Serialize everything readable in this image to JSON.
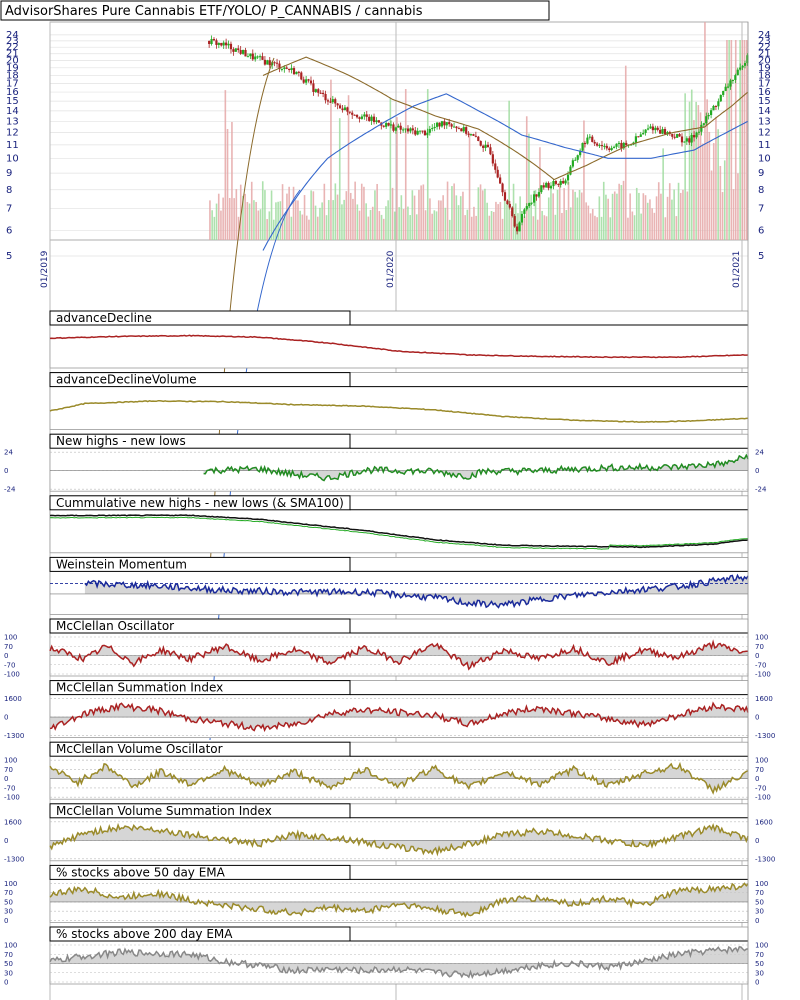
{
  "chart_data": {
    "type": "line",
    "title": "AdvisorShares Pure Cannabis ETF/YOLO/ P_CANNABIS / cannabis",
    "colors": {
      "up": "#22aa22",
      "down": "#aa2222",
      "sma_long": "#3366cc",
      "sma_mid": "#8b6a2b",
      "red_line": "#aa2222",
      "olive_line": "#9a8a2a",
      "green_line": "#228b22",
      "black_line": "#111111",
      "blue_line": "#1a2a9a",
      "gray_line": "#888888",
      "fill": "#c8c8c8"
    },
    "price_panel": {
      "y_ticks": [
        5,
        6,
        7,
        8,
        9,
        10,
        11,
        12,
        13,
        14,
        15,
        16,
        17,
        18,
        19,
        20,
        21,
        22,
        23,
        24
      ],
      "y_labels_left": [
        "24",
        "23",
        "22",
        "21",
        "20",
        "19",
        "18",
        "17",
        "16",
        "15",
        "14",
        "13",
        "12",
        "11",
        "10",
        "9",
        "8",
        "7",
        "6",
        "5"
      ],
      "y_labels_right": [
        "24",
        "23",
        "22",
        "21",
        "20",
        "19",
        "18",
        "17",
        "16",
        "15",
        "14",
        "13",
        "12",
        "11",
        "10",
        "9",
        "8",
        "7",
        "6",
        "5"
      ],
      "scale": "log",
      "x_dates": [
        "01/2019",
        "01/2020",
        "01/2021"
      ],
      "price_points": [
        [
          0.0,
          23.0
        ],
        [
          0.04,
          22.0
        ],
        [
          0.08,
          20.5
        ],
        [
          0.12,
          19.5
        ],
        [
          0.16,
          18.5
        ],
        [
          0.2,
          16.0
        ],
        [
          0.24,
          14.5
        ],
        [
          0.28,
          13.5
        ],
        [
          0.32,
          12.8
        ],
        [
          0.36,
          12.2
        ],
        [
          0.4,
          12.0
        ],
        [
          0.44,
          13.0
        ],
        [
          0.48,
          12.0
        ],
        [
          0.52,
          10.5
        ],
        [
          0.55,
          7.5
        ],
        [
          0.57,
          6.0
        ],
        [
          0.59,
          7.2
        ],
        [
          0.62,
          8.2
        ],
        [
          0.66,
          8.5
        ],
        [
          0.7,
          11.5
        ],
        [
          0.74,
          10.8
        ],
        [
          0.78,
          11.0
        ],
        [
          0.82,
          12.5
        ],
        [
          0.86,
          11.8
        ],
        [
          0.89,
          11.2
        ],
        [
          0.92,
          13.0
        ],
        [
          0.95,
          15.5
        ],
        [
          0.97,
          17.5
        ],
        [
          0.99,
          19.0
        ],
        [
          1.0,
          21.5
        ]
      ],
      "sma_mid_points": [
        [
          0.1,
          18.0
        ],
        [
          0.18,
          20.5
        ],
        [
          0.26,
          18.0
        ],
        [
          0.34,
          15.2
        ],
        [
          0.42,
          13.5
        ],
        [
          0.5,
          12.3
        ],
        [
          0.58,
          10.2
        ],
        [
          0.64,
          8.6
        ],
        [
          0.7,
          9.5
        ],
        [
          0.78,
          11.0
        ],
        [
          0.86,
          12.0
        ],
        [
          0.92,
          12.5
        ],
        [
          0.97,
          14.5
        ],
        [
          1.0,
          16.0
        ]
      ],
      "sma_long_points": [
        [
          0.1,
          5.2
        ],
        [
          0.16,
          7.5
        ],
        [
          0.22,
          10.0
        ],
        [
          0.3,
          12.2
        ],
        [
          0.38,
          14.5
        ],
        [
          0.44,
          15.8
        ],
        [
          0.5,
          14.0
        ],
        [
          0.58,
          11.8
        ],
        [
          0.66,
          10.8
        ],
        [
          0.74,
          10.0
        ],
        [
          0.82,
          10.0
        ],
        [
          0.9,
          10.6
        ],
        [
          0.96,
          12.0
        ],
        [
          1.0,
          13.0
        ]
      ]
    },
    "panels": [
      {
        "title": "advanceDecline",
        "style": "line",
        "color_key": "red_line",
        "points": [
          [
            0,
            0.75
          ],
          [
            0.1,
            0.8
          ],
          [
            0.2,
            0.82
          ],
          [
            0.3,
            0.78
          ],
          [
            0.4,
            0.62
          ],
          [
            0.5,
            0.4
          ],
          [
            0.6,
            0.3
          ],
          [
            0.7,
            0.26
          ],
          [
            0.8,
            0.24
          ],
          [
            0.9,
            0.24
          ],
          [
            1,
            0.3
          ]
        ],
        "y_labels": []
      },
      {
        "title": "advanceDeclineVolume",
        "style": "line",
        "color_key": "olive_line",
        "points": [
          [
            0,
            0.45
          ],
          [
            0.05,
            0.65
          ],
          [
            0.15,
            0.72
          ],
          [
            0.25,
            0.7
          ],
          [
            0.35,
            0.62
          ],
          [
            0.45,
            0.58
          ],
          [
            0.55,
            0.48
          ],
          [
            0.65,
            0.3
          ],
          [
            0.75,
            0.2
          ],
          [
            0.85,
            0.15
          ],
          [
            0.92,
            0.18
          ],
          [
            1,
            0.25
          ]
        ],
        "y_labels": []
      },
      {
        "title": "New highs - new lows",
        "style": "osc",
        "color_key": "green_line",
        "points": [
          [
            0.22,
            0.5
          ],
          [
            0.3,
            0.55
          ],
          [
            0.35,
            0.4
          ],
          [
            0.4,
            0.3
          ],
          [
            0.45,
            0.52
          ],
          [
            0.55,
            0.48
          ],
          [
            0.6,
            0.35
          ],
          [
            0.62,
            0.48
          ],
          [
            0.7,
            0.5
          ],
          [
            0.8,
            0.58
          ],
          [
            0.9,
            0.6
          ],
          [
            0.97,
            0.7
          ],
          [
            1,
            0.9
          ]
        ],
        "y_labels": [
          "24",
          "0",
          "-24"
        ]
      },
      {
        "title": "Cummulative new highs - new lows (& SMA100)",
        "style": "line",
        "color_key": "black_line",
        "points": [
          [
            0,
            0.95
          ],
          [
            0.2,
            0.96
          ],
          [
            0.3,
            0.85
          ],
          [
            0.45,
            0.55
          ],
          [
            0.55,
            0.3
          ],
          [
            0.65,
            0.15
          ],
          [
            0.75,
            0.12
          ],
          [
            0.85,
            0.1
          ],
          [
            0.95,
            0.18
          ],
          [
            1,
            0.3
          ]
        ],
        "y_labels": []
      },
      {
        "title": "Weinstein Momentum",
        "style": "osc",
        "color_key": "blue_line",
        "points": [
          [
            0.05,
            0.78
          ],
          [
            0.15,
            0.72
          ],
          [
            0.25,
            0.6
          ],
          [
            0.35,
            0.55
          ],
          [
            0.45,
            0.55
          ],
          [
            0.55,
            0.4
          ],
          [
            0.6,
            0.25
          ],
          [
            0.65,
            0.2
          ],
          [
            0.72,
            0.4
          ],
          [
            0.8,
            0.55
          ],
          [
            0.9,
            0.7
          ],
          [
            0.97,
            0.9
          ],
          [
            1,
            0.95
          ]
        ],
        "y_labels": []
      },
      {
        "title": "McClellan Oscillator",
        "style": "osc",
        "color_key": "red_line",
        "points": [
          [
            0,
            0.7
          ],
          [
            0.05,
            0.4
          ],
          [
            0.08,
            0.75
          ],
          [
            0.12,
            0.3
          ],
          [
            0.16,
            0.65
          ],
          [
            0.2,
            0.4
          ],
          [
            0.25,
            0.75
          ],
          [
            0.3,
            0.35
          ],
          [
            0.35,
            0.65
          ],
          [
            0.4,
            0.3
          ],
          [
            0.45,
            0.7
          ],
          [
            0.5,
            0.35
          ],
          [
            0.55,
            0.8
          ],
          [
            0.6,
            0.2
          ],
          [
            0.65,
            0.65
          ],
          [
            0.7,
            0.4
          ],
          [
            0.75,
            0.7
          ],
          [
            0.8,
            0.3
          ],
          [
            0.85,
            0.65
          ],
          [
            0.9,
            0.45
          ],
          [
            0.95,
            0.8
          ],
          [
            1,
            0.55
          ]
        ],
        "y_labels": [
          "100",
          "70",
          "0",
          "-70",
          "-100"
        ]
      },
      {
        "title": "McClellan Summation Index",
        "style": "osc",
        "color_key": "red_line",
        "points": [
          [
            0,
            0.2
          ],
          [
            0.05,
            0.6
          ],
          [
            0.1,
            0.8
          ],
          [
            0.15,
            0.7
          ],
          [
            0.2,
            0.45
          ],
          [
            0.3,
            0.2
          ],
          [
            0.35,
            0.3
          ],
          [
            0.4,
            0.6
          ],
          [
            0.45,
            0.7
          ],
          [
            0.55,
            0.55
          ],
          [
            0.6,
            0.3
          ],
          [
            0.65,
            0.6
          ],
          [
            0.7,
            0.75
          ],
          [
            0.8,
            0.45
          ],
          [
            0.85,
            0.3
          ],
          [
            0.9,
            0.55
          ],
          [
            0.95,
            0.8
          ],
          [
            1,
            0.7
          ]
        ],
        "y_labels": [
          "1600",
          "0",
          "-1300"
        ]
      },
      {
        "title": "McClellan Volume Oscillator",
        "style": "osc",
        "color_key": "olive_line",
        "points": [
          [
            0,
            0.8
          ],
          [
            0.04,
            0.4
          ],
          [
            0.08,
            0.85
          ],
          [
            0.12,
            0.3
          ],
          [
            0.16,
            0.7
          ],
          [
            0.2,
            0.35
          ],
          [
            0.25,
            0.75
          ],
          [
            0.3,
            0.3
          ],
          [
            0.35,
            0.7
          ],
          [
            0.4,
            0.25
          ],
          [
            0.45,
            0.75
          ],
          [
            0.5,
            0.3
          ],
          [
            0.55,
            0.8
          ],
          [
            0.6,
            0.25
          ],
          [
            0.65,
            0.7
          ],
          [
            0.7,
            0.35
          ],
          [
            0.75,
            0.75
          ],
          [
            0.8,
            0.3
          ],
          [
            0.85,
            0.65
          ],
          [
            0.9,
            0.85
          ],
          [
            0.95,
            0.2
          ],
          [
            1,
            0.65
          ]
        ],
        "y_labels": [
          "100",
          "70",
          "0",
          "-70",
          "-100"
        ]
      },
      {
        "title": "McClellan Volume Summation Index",
        "style": "osc",
        "color_key": "olive_line",
        "points": [
          [
            0,
            0.3
          ],
          [
            0.05,
            0.7
          ],
          [
            0.1,
            0.85
          ],
          [
            0.15,
            0.8
          ],
          [
            0.22,
            0.6
          ],
          [
            0.3,
            0.4
          ],
          [
            0.35,
            0.65
          ],
          [
            0.42,
            0.55
          ],
          [
            0.48,
            0.35
          ],
          [
            0.55,
            0.2
          ],
          [
            0.6,
            0.4
          ],
          [
            0.65,
            0.65
          ],
          [
            0.7,
            0.75
          ],
          [
            0.78,
            0.55
          ],
          [
            0.85,
            0.35
          ],
          [
            0.9,
            0.6
          ],
          [
            0.95,
            0.85
          ],
          [
            1,
            0.55
          ]
        ],
        "y_labels": [
          "1600",
          "0",
          "-1300"
        ]
      },
      {
        "title": "% stocks above 50 day EMA",
        "style": "osc",
        "color_key": "olive_line",
        "points": [
          [
            0,
            0.7
          ],
          [
            0.05,
            0.85
          ],
          [
            0.1,
            0.6
          ],
          [
            0.15,
            0.75
          ],
          [
            0.2,
            0.55
          ],
          [
            0.25,
            0.4
          ],
          [
            0.3,
            0.3
          ],
          [
            0.35,
            0.2
          ],
          [
            0.4,
            0.35
          ],
          [
            0.45,
            0.25
          ],
          [
            0.5,
            0.45
          ],
          [
            0.55,
            0.3
          ],
          [
            0.6,
            0.15
          ],
          [
            0.65,
            0.55
          ],
          [
            0.7,
            0.6
          ],
          [
            0.75,
            0.45
          ],
          [
            0.8,
            0.6
          ],
          [
            0.85,
            0.4
          ],
          [
            0.9,
            0.8
          ],
          [
            0.95,
            0.85
          ],
          [
            1,
            0.95
          ]
        ],
        "y_labels": [
          "100",
          "70",
          "50",
          "30",
          "0"
        ]
      },
      {
        "title": "% stocks above 200 day EMA",
        "style": "osc",
        "color_key": "gray_line",
        "points": [
          [
            0,
            0.55
          ],
          [
            0.05,
            0.7
          ],
          [
            0.1,
            0.8
          ],
          [
            0.2,
            0.75
          ],
          [
            0.25,
            0.55
          ],
          [
            0.3,
            0.45
          ],
          [
            0.35,
            0.3
          ],
          [
            0.4,
            0.35
          ],
          [
            0.45,
            0.3
          ],
          [
            0.5,
            0.35
          ],
          [
            0.55,
            0.25
          ],
          [
            0.6,
            0.2
          ],
          [
            0.65,
            0.3
          ],
          [
            0.7,
            0.45
          ],
          [
            0.75,
            0.5
          ],
          [
            0.8,
            0.4
          ],
          [
            0.85,
            0.55
          ],
          [
            0.9,
            0.75
          ],
          [
            0.95,
            0.85
          ],
          [
            1,
            0.9
          ]
        ],
        "y_labels": [
          "100",
          "70",
          "50",
          "30",
          "0"
        ]
      }
    ]
  }
}
